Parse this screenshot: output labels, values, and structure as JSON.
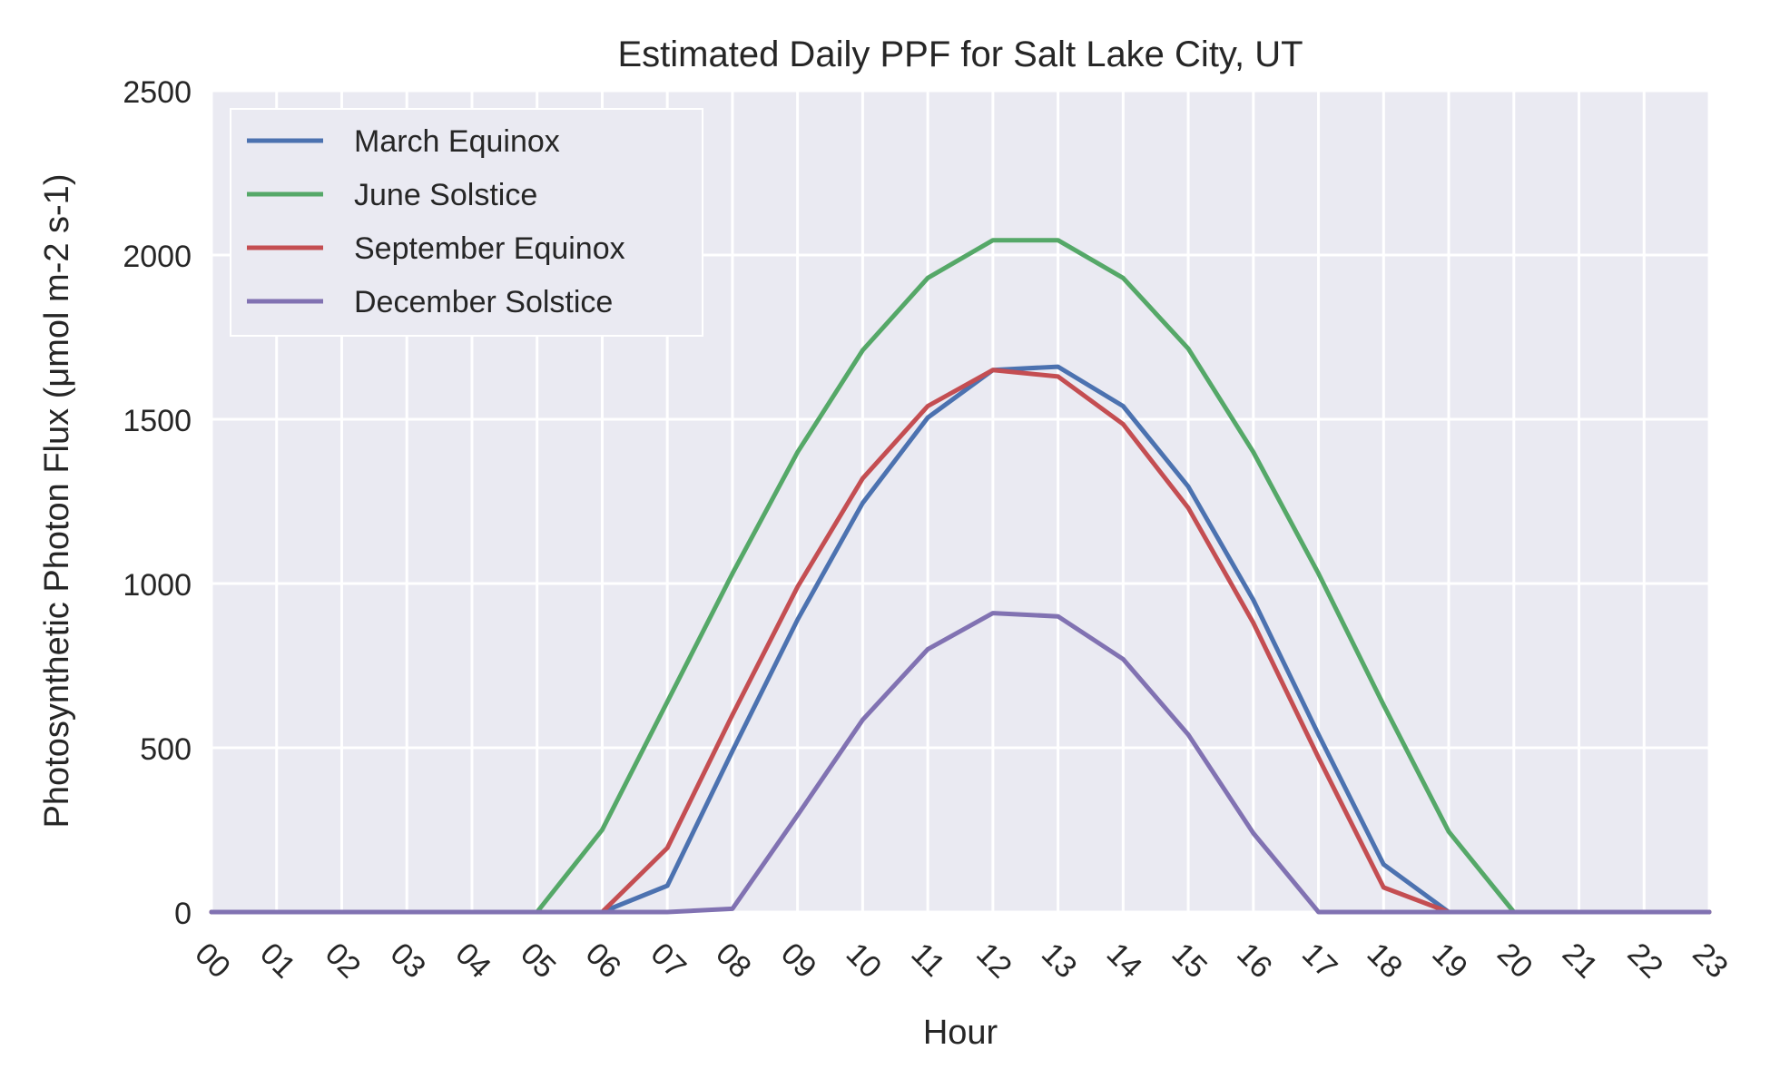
{
  "chart_data": {
    "type": "line",
    "title": "Estimated Daily PPF for Salt Lake City, UT",
    "xlabel": "Hour",
    "ylabel": "Photosynthetic Photon Flux (μmol m-2 s-1)",
    "x": [
      "00",
      "01",
      "02",
      "03",
      "04",
      "05",
      "06",
      "07",
      "08",
      "09",
      "10",
      "11",
      "12",
      "13",
      "14",
      "15",
      "16",
      "17",
      "18",
      "19",
      "20",
      "21",
      "22",
      "23"
    ],
    "ylim": [
      0,
      2500
    ],
    "yticks": [
      "0",
      "500",
      "1000",
      "1500",
      "2000",
      "2500"
    ],
    "grid": true,
    "legend_position": "top-left",
    "series": [
      {
        "name": "March Equinox",
        "color": "#4c72b0",
        "values": [
          0,
          0,
          0,
          0,
          0,
          0,
          0,
          80,
          490,
          890,
          1245,
          1505,
          1650,
          1660,
          1540,
          1295,
          950,
          540,
          145,
          0,
          0,
          0,
          0,
          0
        ]
      },
      {
        "name": "June Solstice",
        "color": "#55a868",
        "values": [
          0,
          0,
          0,
          0,
          0,
          0,
          250,
          640,
          1030,
          1400,
          1710,
          1930,
          2045,
          2045,
          1930,
          1715,
          1400,
          1030,
          630,
          245,
          0,
          0,
          0,
          0
        ]
      },
      {
        "name": "September Equinox",
        "color": "#c44e52",
        "values": [
          0,
          0,
          0,
          0,
          0,
          0,
          0,
          195,
          600,
          990,
          1320,
          1540,
          1650,
          1630,
          1485,
          1230,
          880,
          470,
          75,
          0,
          0,
          0,
          0,
          0
        ]
      },
      {
        "name": "December Solstice",
        "color": "#8172b2",
        "values": [
          0,
          0,
          0,
          0,
          0,
          0,
          0,
          0,
          10,
          295,
          585,
          800,
          910,
          900,
          770,
          540,
          240,
          0,
          0,
          0,
          0,
          0,
          0,
          0
        ]
      }
    ]
  }
}
